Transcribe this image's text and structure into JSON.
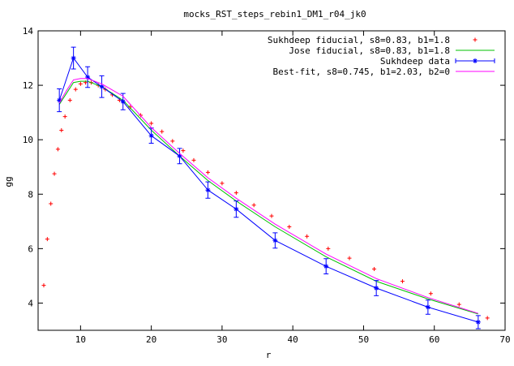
{
  "chart_data": {
    "type": "line",
    "title": "mocks_RST_steps_rebin1_DM1_r04_jk0",
    "xlabel": "r",
    "ylabel": "gg",
    "xlim": [
      4,
      70
    ],
    "ylim": [
      3,
      14
    ],
    "x_ticks": [
      10,
      20,
      30,
      40,
      50,
      60,
      70
    ],
    "y_ticks": [
      4,
      6,
      8,
      10,
      12,
      14
    ],
    "grid": false,
    "legend_position": "top-right",
    "series": [
      {
        "name": "Sukhdeep fiducial, s8=0.83, b1=1.8",
        "style": "points-plus",
        "color": "#ff0000",
        "x": [
          4.8,
          5.3,
          5.8,
          6.3,
          6.8,
          7.3,
          7.8,
          8.5,
          9.3,
          10.0,
          10.7,
          11.5,
          12.5,
          13.5,
          14.5,
          15.5,
          17.0,
          18.5,
          20.0,
          21.5,
          23.0,
          24.5,
          26.0,
          28.0,
          30.0,
          32.0,
          34.5,
          37.0,
          39.5,
          42.0,
          45.0,
          48.0,
          51.5,
          55.5,
          59.5,
          63.5,
          67.5
        ],
        "y": [
          4.65,
          6.35,
          7.65,
          8.75,
          9.65,
          10.35,
          10.85,
          11.45,
          11.85,
          12.05,
          12.1,
          12.1,
          12.0,
          11.85,
          11.65,
          11.45,
          11.2,
          10.9,
          10.6,
          10.3,
          9.95,
          9.6,
          9.25,
          8.8,
          8.4,
          8.05,
          7.6,
          7.2,
          6.8,
          6.45,
          6.0,
          5.65,
          5.25,
          4.8,
          4.35,
          3.95,
          3.45
        ]
      },
      {
        "name": "Jose fiducial, s8=0.83, b1=1.8",
        "style": "line",
        "color": "#00c000",
        "x": [
          7,
          8,
          9,
          10,
          11,
          13,
          16,
          20,
          24,
          28,
          32,
          37.5,
          44.7,
          51.8,
          59.1,
          66.2
        ],
        "y": [
          11.3,
          11.7,
          12.1,
          12.15,
          12.15,
          11.95,
          11.45,
          10.35,
          9.4,
          8.5,
          7.75,
          6.8,
          5.7,
          4.8,
          4.15,
          3.6
        ]
      },
      {
        "name": "Sukhdeep data",
        "style": "points-errorbars",
        "color": "#0000ff",
        "x": [
          7,
          9,
          11,
          13,
          16,
          20,
          24,
          28,
          32,
          37.5,
          44.7,
          51.8,
          59.1,
          66.2
        ],
        "y": [
          11.45,
          13.0,
          12.3,
          11.95,
          11.4,
          10.15,
          9.4,
          8.15,
          7.45,
          6.3,
          5.35,
          4.55,
          3.85,
          3.3
        ],
        "yerr": [
          0.42,
          0.4,
          0.38,
          0.4,
          0.3,
          0.28,
          0.28,
          0.3,
          0.3,
          0.28,
          0.28,
          0.28,
          0.26,
          0.24
        ]
      },
      {
        "name": "Best-fit, s8=0.745, b1=2.03, b2=0",
        "style": "line",
        "color": "#ff00ff",
        "x": [
          7,
          8,
          9,
          10,
          11,
          13,
          16,
          20,
          24,
          28,
          32,
          37.5,
          44.7,
          51.8,
          59.1,
          66.2
        ],
        "y": [
          11.35,
          11.8,
          12.2,
          12.25,
          12.25,
          12.05,
          11.6,
          10.45,
          9.5,
          8.6,
          7.85,
          6.9,
          5.8,
          4.9,
          4.2,
          3.62
        ]
      }
    ]
  }
}
